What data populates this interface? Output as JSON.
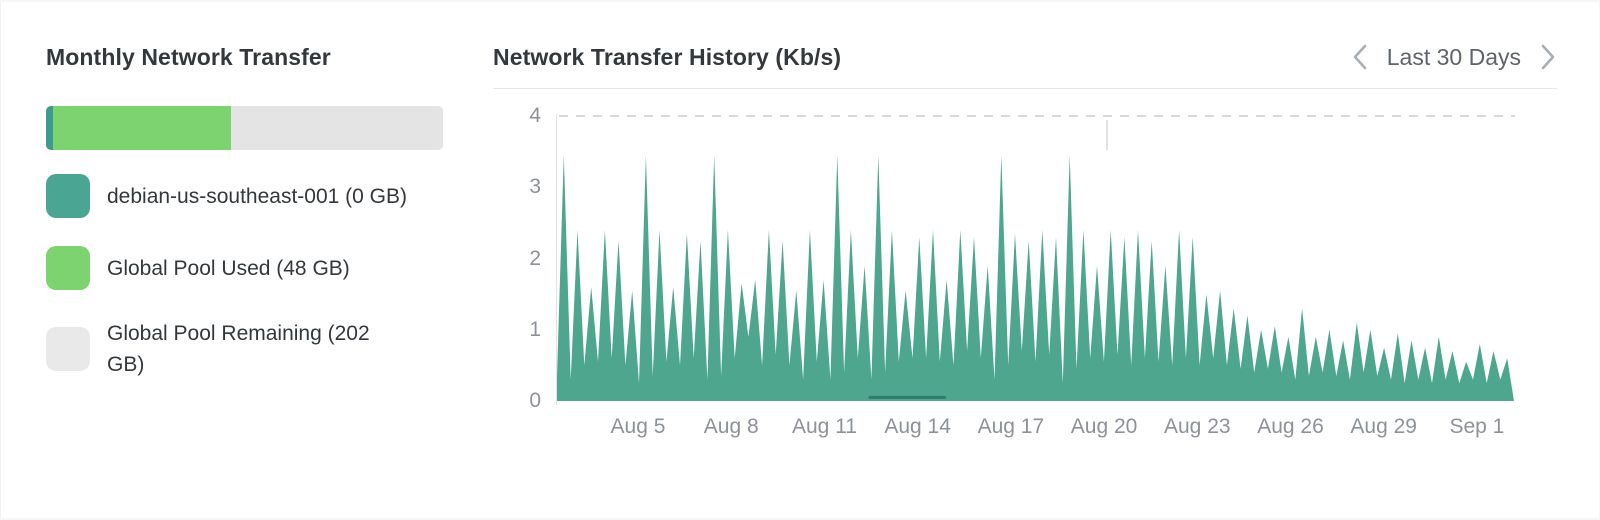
{
  "left_panel": {
    "title": "Monthly Network Transfer",
    "usage_bar": {
      "segments": [
        {
          "name": "debian-us-southeast-001",
          "color": "#3e9b8c",
          "width_pct": 1.8
        },
        {
          "name": "global-pool-used",
          "color": "#7cd36f",
          "width_pct": 44.8
        },
        {
          "name": "global-pool-remaining",
          "color": "#e4e4e4",
          "width_pct": 53.4
        }
      ]
    },
    "legend": [
      {
        "label": "debian-us-southeast-001 (0 GB)",
        "color": "#4ba593"
      },
      {
        "label": "Global Pool Used (48 GB)",
        "color": "#7cd36f"
      },
      {
        "label": "Global Pool Remaining (202 GB)",
        "color": "#e9e9e9"
      }
    ]
  },
  "right_panel": {
    "title": "Network Transfer History (Kb/s)",
    "range_label": "Last 30 Days"
  },
  "chart_data": {
    "type": "area",
    "title": "Network Transfer History (Kb/s)",
    "ylabel": "Kb/s",
    "ylim": [
      0,
      4
    ],
    "y_ticks": [
      4,
      3,
      2,
      1,
      0
    ],
    "x_ticks": [
      "Aug 5",
      "Aug 8",
      "Aug 11",
      "Aug 14",
      "Aug 17",
      "Aug 20",
      "Aug 23",
      "Aug 26",
      "Aug 29",
      "Sep 1"
    ],
    "grid": "dashed-top-only",
    "legend_position": "none",
    "area_color": "#4da68d",
    "values": [
      0.35,
      3.45,
      0.3,
      2.4,
      0.5,
      1.6,
      0.55,
      2.4,
      0.6,
      2.25,
      0.5,
      1.55,
      0.25,
      3.45,
      0.35,
      2.4,
      0.55,
      1.6,
      0.5,
      2.35,
      0.6,
      2.25,
      0.3,
      3.45,
      0.35,
      2.4,
      0.6,
      1.65,
      0.9,
      1.7,
      0.5,
      2.4,
      0.65,
      2.25,
      0.5,
      1.55,
      0.3,
      2.4,
      0.55,
      1.7,
      0.3,
      3.45,
      0.4,
      2.4,
      0.6,
      1.9,
      0.3,
      3.45,
      0.4,
      2.4,
      0.55,
      1.55,
      0.6,
      2.3,
      0.6,
      2.4,
      0.55,
      1.7,
      0.5,
      2.4,
      0.7,
      2.3,
      0.6,
      1.9,
      0.3,
      3.45,
      0.5,
      2.35,
      0.7,
      2.25,
      0.55,
      2.4,
      0.65,
      2.3,
      0.25,
      3.45,
      0.45,
      2.4,
      0.6,
      1.9,
      0.55,
      2.4,
      0.65,
      2.3,
      0.5,
      2.4,
      0.6,
      2.25,
      0.55,
      1.9,
      0.5,
      2.4,
      0.6,
      2.3,
      0.5,
      1.5,
      0.6,
      1.55,
      0.5,
      1.3,
      0.45,
      1.2,
      0.4,
      1.0,
      0.45,
      1.05,
      0.4,
      0.9,
      0.3,
      1.3,
      0.35,
      0.9,
      0.4,
      1.0,
      0.35,
      0.85,
      0.3,
      1.1,
      0.4,
      1.0,
      0.35,
      0.75,
      0.3,
      0.95,
      0.25,
      0.85,
      0.3,
      0.75,
      0.25,
      0.9,
      0.3,
      0.7,
      0.25,
      0.55,
      0.3,
      0.8,
      0.25,
      0.7,
      0.3,
      0.6,
      0.0
    ],
    "baseline_segment": {
      "start_frac": 0.327,
      "end_frac": 0.405,
      "value": 0.05,
      "color": "#2e7d6b"
    }
  }
}
